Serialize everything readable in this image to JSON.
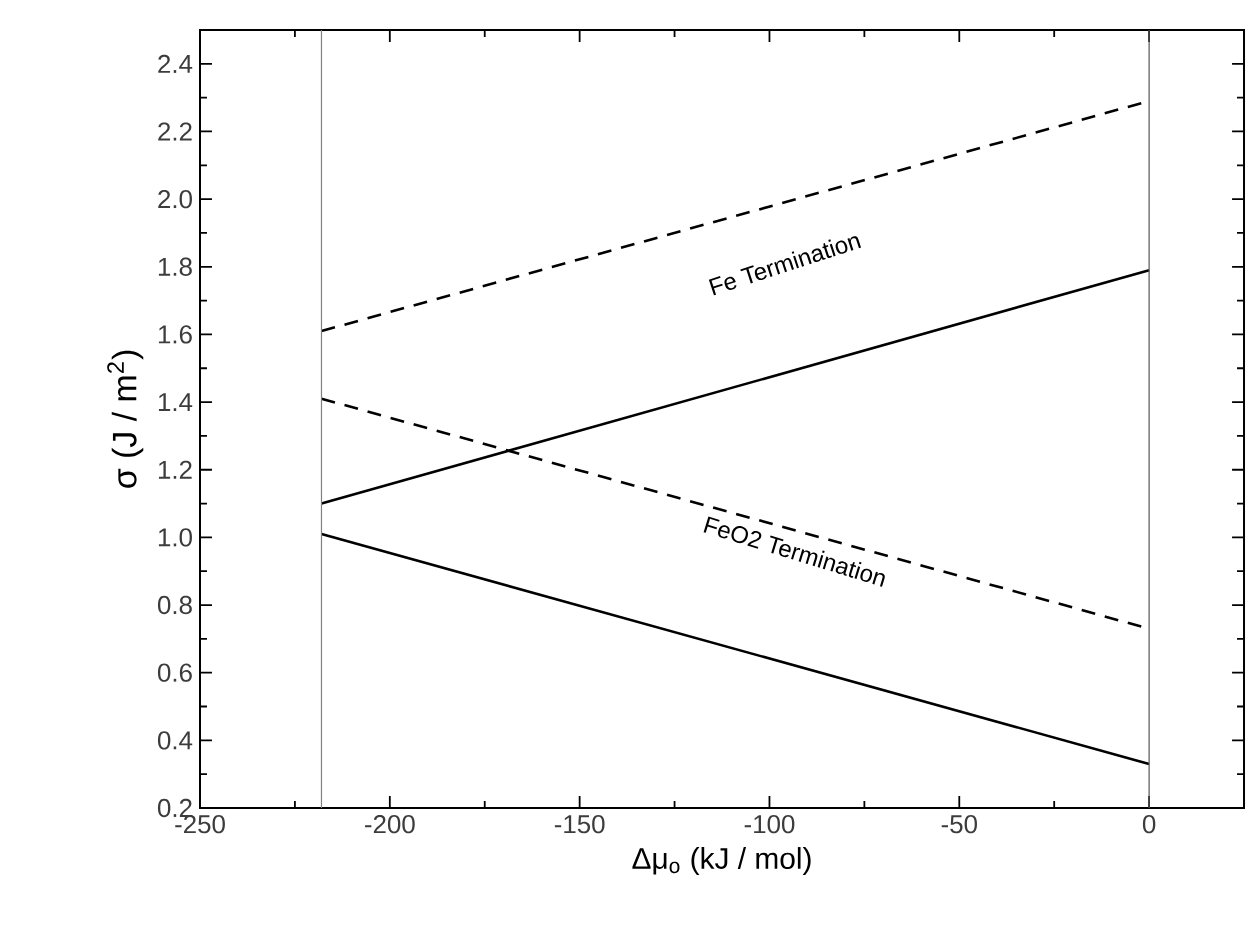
{
  "chart_data": {
    "type": "line",
    "xlabel": "Δμ$_{o}$ (kJ / mol)",
    "ylabel": "σ  (J / m$^{2}$)",
    "xlim": [
      -250,
      25
    ],
    "ylim": [
      0.2,
      2.5
    ],
    "xticks": [
      -250,
      -200,
      -150,
      -100,
      -50,
      0
    ],
    "yticks": [
      {
        "value": 0.2,
        "label": "0.2"
      },
      {
        "value": 0.4,
        "label": "0.4"
      },
      {
        "value": 0.6,
        "label": "0.6"
      },
      {
        "value": 0.8,
        "label": "0.8"
      },
      {
        "value": 1.0,
        "label": "1.0"
      },
      {
        "value": 1.2,
        "label": "1.2"
      },
      {
        "value": 1.4,
        "label": "1.4"
      },
      {
        "value": 1.6,
        "label": "1.6"
      },
      {
        "value": 1.8,
        "label": "1.8"
      },
      {
        "value": 2.0,
        "label": "2.0"
      },
      {
        "value": 2.2,
        "label": "2.2"
      },
      {
        "value": 2.4,
        "label": "2.4"
      }
    ],
    "x": [
      -218,
      0
    ],
    "series": [
      {
        "color": "#000000",
        "line_style": "dashed",
        "values": [
          1.61,
          2.29
        ]
      },
      {
        "color": "#000000",
        "line_style": "solid",
        "values": [
          1.1,
          1.79
        ]
      },
      {
        "color": "#000000",
        "line_style": "dashed",
        "values": [
          1.41,
          0.73
        ]
      },
      {
        "color": "#000000",
        "line_style": "solid",
        "values": [
          1.01,
          0.33
        ]
      }
    ],
    "ref_lines": [
      {
        "axis": "x",
        "value": -218,
        "color": "#808080"
      },
      {
        "axis": "x",
        "value": 0,
        "color": "#555555"
      }
    ],
    "annotations": [
      "Fe Termination",
      "FeO2 Termination"
    ],
    "grid": false,
    "marker": "none"
  }
}
